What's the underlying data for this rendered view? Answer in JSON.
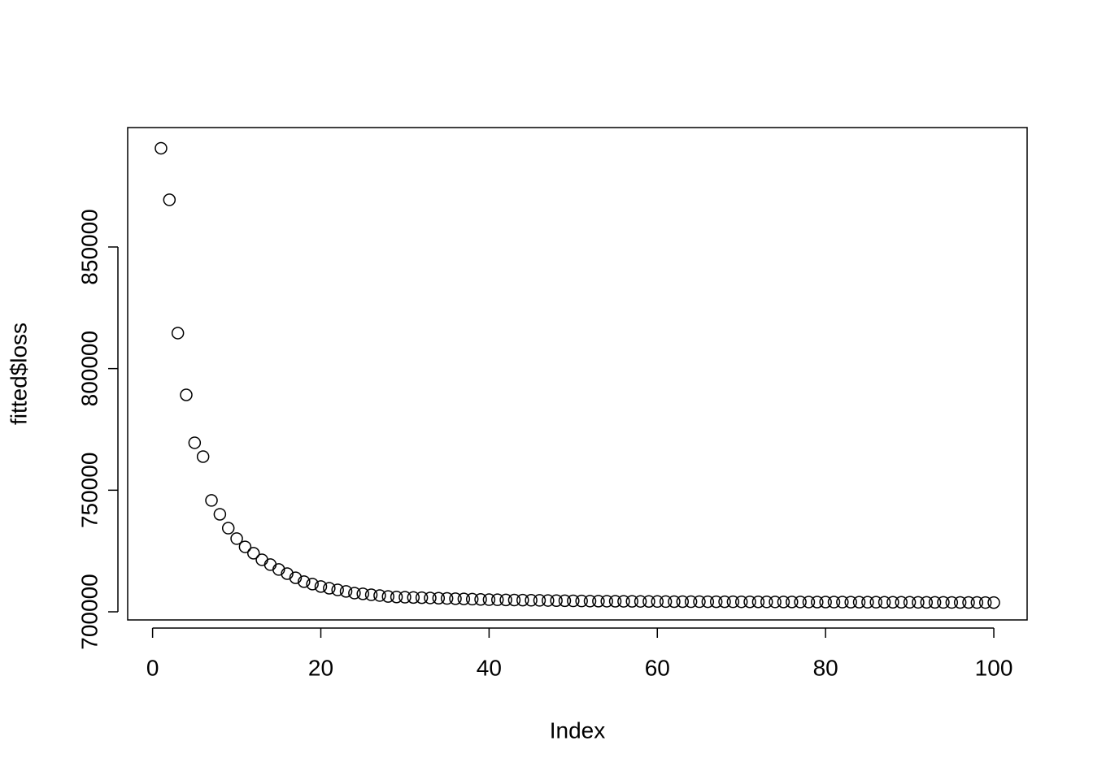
{
  "chart_data": {
    "type": "scatter",
    "x_label": "Index",
    "y_label": "fitted$loss",
    "x": [
      1,
      2,
      3,
      4,
      5,
      6,
      7,
      8,
      9,
      10,
      11,
      12,
      13,
      14,
      15,
      16,
      17,
      18,
      19,
      20,
      21,
      22,
      23,
      24,
      25,
      26,
      27,
      28,
      29,
      30,
      31,
      32,
      33,
      34,
      35,
      36,
      37,
      38,
      39,
      40,
      41,
      42,
      43,
      44,
      45,
      46,
      47,
      48,
      49,
      50,
      51,
      52,
      53,
      54,
      55,
      56,
      57,
      58,
      59,
      60,
      61,
      62,
      63,
      64,
      65,
      66,
      67,
      68,
      69,
      70,
      71,
      72,
      73,
      74,
      75,
      76,
      77,
      78,
      79,
      80,
      81,
      82,
      83,
      84,
      85,
      86,
      87,
      88,
      89,
      90,
      91,
      92,
      93,
      94,
      95,
      96,
      97,
      98,
      99,
      100
    ],
    "values": [
      890600,
      869400,
      814600,
      789200,
      769500,
      763800,
      745800,
      740100,
      734400,
      730100,
      726700,
      724100,
      721400,
      719400,
      717400,
      715700,
      714000,
      712400,
      711400,
      710400,
      709700,
      709000,
      708400,
      707700,
      707400,
      707000,
      706700,
      706300,
      706100,
      706000,
      705900,
      705800,
      705700,
      705600,
      705500,
      705400,
      705300,
      705200,
      705100,
      705000,
      704950,
      704900,
      704850,
      704800,
      704750,
      704700,
      704650,
      704600,
      704550,
      704500,
      704450,
      704400,
      704380,
      704360,
      704340,
      704320,
      704300,
      704280,
      704260,
      704240,
      704200,
      704190,
      704180,
      704170,
      704160,
      704150,
      704140,
      704130,
      704120,
      704110,
      704100,
      704090,
      704080,
      704070,
      704060,
      704050,
      704040,
      704030,
      704020,
      704010,
      704000,
      703990,
      703980,
      703970,
      703960,
      703950,
      703940,
      703930,
      703920,
      703910,
      703900,
      703890,
      703880,
      703870,
      703860,
      703850,
      703840,
      703830,
      703820,
      703810
    ],
    "color": "#000000",
    "xlim": [
      -2.96,
      103.96
    ],
    "ylim": [
      696660,
      899100
    ],
    "xticks": [
      0,
      20,
      40,
      60,
      80,
      100
    ],
    "yticks": [
      700000,
      750000,
      800000,
      850000
    ]
  }
}
